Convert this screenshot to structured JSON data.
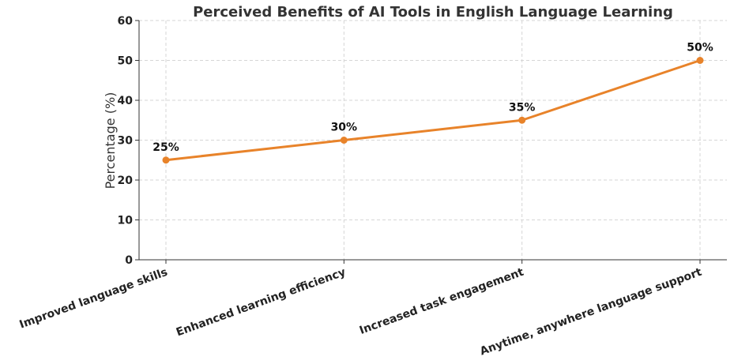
{
  "chart_data": {
    "type": "line",
    "title": "Perceived Benefits of AI Tools in English Language Learning",
    "xlabel": "",
    "ylabel": "Percentage (%)",
    "ylim": [
      0,
      60
    ],
    "yticks": [
      0,
      10,
      20,
      30,
      40,
      50,
      60
    ],
    "grid": true,
    "categories": [
      "Improved language skills",
      "Enhanced learning efficiency",
      "Increased task engagement",
      "Anytime, anywhere language support"
    ],
    "series": [
      {
        "name": "Percentage",
        "values": [
          25,
          30,
          35,
          50
        ],
        "labels": [
          "25%",
          "30%",
          "35%",
          "50%"
        ],
        "color": "#e8832a"
      }
    ]
  }
}
